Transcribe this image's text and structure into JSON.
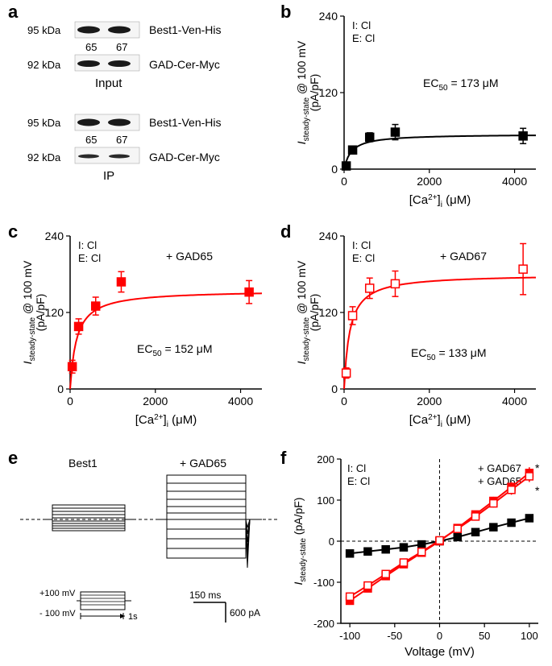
{
  "panel_a": {
    "label": "a",
    "input_label": "Input",
    "ip_label": "IP",
    "kda_95": "95 kDa",
    "kda_92": "92 kDa",
    "lane_65": "65",
    "lane_67": "67",
    "best1_label": "Best1-Ven-His",
    "gad_label": "GAD-Cer-Myc"
  },
  "panel_b": {
    "label": "b",
    "ylabel_top": "I",
    "ylabel_sub": "steady-state",
    "ylabel_mid": " @ 100 mV",
    "ylabel_units": "(pA/pF)",
    "xlabel": "[Ca",
    "xlabel_sup": "2+",
    "xlabel_sub": "i",
    "xlabel_units": " (μM)",
    "ec50_label": "EC",
    "ec50_sub": "50",
    "ec50_val": " = 173 μM",
    "legend_I": "I:  Cl",
    "legend_E": "E: Cl",
    "y_ticks": [
      0,
      120,
      240
    ],
    "x_ticks": [
      0,
      2000,
      4000
    ],
    "x_range": [
      0,
      4500
    ],
    "y_range": [
      0,
      240
    ],
    "color": "#000000",
    "marker_fill": "#000000",
    "data": [
      {
        "x": 50,
        "y": 5,
        "erry": 4
      },
      {
        "x": 200,
        "y": 30,
        "erry": 6
      },
      {
        "x": 600,
        "y": 50,
        "erry": 7
      },
      {
        "x": 1200,
        "y": 58,
        "erry": 12
      },
      {
        "x": 4200,
        "y": 52,
        "erry": 12
      }
    ],
    "plateau": 55
  },
  "panel_c": {
    "label": "c",
    "condition": "+ GAD65",
    "ec50_val": " = 152 μM",
    "color": "#ff0000",
    "marker_fill": "#ff0000",
    "data": [
      {
        "x": 50,
        "y": 35,
        "erry": 10
      },
      {
        "x": 200,
        "y": 98,
        "erry": 12
      },
      {
        "x": 600,
        "y": 130,
        "erry": 14
      },
      {
        "x": 1200,
        "y": 168,
        "erry": 16
      },
      {
        "x": 4200,
        "y": 152,
        "erry": 18
      }
    ],
    "plateau": 155
  },
  "panel_d": {
    "label": "d",
    "condition": "+ GAD67",
    "ec50_val": " = 133 μM",
    "color": "#ff0000",
    "marker_fill": "#ffffff",
    "data": [
      {
        "x": 50,
        "y": 25,
        "erry": 8
      },
      {
        "x": 200,
        "y": 115,
        "erry": 14
      },
      {
        "x": 600,
        "y": 158,
        "erry": 16
      },
      {
        "x": 1200,
        "y": 165,
        "erry": 20
      },
      {
        "x": 4200,
        "y": 188,
        "erry": 40
      }
    ],
    "plateau": 180
  },
  "panel_e": {
    "label": "e",
    "best1_label": "Best1",
    "gad65_label": "+ GAD65",
    "protocol_top": "+100 mV",
    "protocol_bot": "- 100 mV",
    "time_label": "1s",
    "scale_time": "150 ms",
    "scale_curr": "600 pA"
  },
  "panel_f": {
    "label": "f",
    "ylabel_top": "I",
    "ylabel_sub": "steady-state",
    "ylabel_units": " (pA/pF)",
    "xlabel": "Voltage (mV)",
    "legend_I": "I:  Cl",
    "legend_E": "E: Cl",
    "legend_gad67": "+ GAD67",
    "legend_gad65": "+ GAD65",
    "star": "*",
    "y_ticks": [
      -200,
      -100,
      0,
      100,
      200
    ],
    "x_ticks": [
      -100,
      -50,
      0,
      50,
      100
    ],
    "x_range": [
      -110,
      110
    ],
    "y_range": [
      -200,
      200
    ],
    "series": [
      {
        "name": "best1",
        "color": "#000000",
        "fill": "#000000",
        "data": [
          {
            "x": -100,
            "y": -30,
            "erry": 5
          },
          {
            "x": -80,
            "y": -25,
            "erry": 5
          },
          {
            "x": -60,
            "y": -20,
            "erry": 5
          },
          {
            "x": -40,
            "y": -15,
            "erry": 4
          },
          {
            "x": -20,
            "y": -8,
            "erry": 3
          },
          {
            "x": 0,
            "y": 0,
            "erry": 3
          },
          {
            "x": 20,
            "y": 10,
            "erry": 4
          },
          {
            "x": 40,
            "y": 22,
            "erry": 5
          },
          {
            "x": 60,
            "y": 34,
            "erry": 6
          },
          {
            "x": 80,
            "y": 45,
            "erry": 7
          },
          {
            "x": 100,
            "y": 56,
            "erry": 8
          }
        ]
      },
      {
        "name": "gad65",
        "color": "#ff0000",
        "fill": "#ff0000",
        "data": [
          {
            "x": -100,
            "y": -145,
            "erry": 10
          },
          {
            "x": -80,
            "y": -115,
            "erry": 9
          },
          {
            "x": -60,
            "y": -85,
            "erry": 8
          },
          {
            "x": -40,
            "y": -56,
            "erry": 7
          },
          {
            "x": -20,
            "y": -28,
            "erry": 5
          },
          {
            "x": 0,
            "y": 0,
            "erry": 4
          },
          {
            "x": 20,
            "y": 32,
            "erry": 6
          },
          {
            "x": 40,
            "y": 65,
            "erry": 8
          },
          {
            "x": 60,
            "y": 98,
            "erry": 10
          },
          {
            "x": 80,
            "y": 132,
            "erry": 12
          },
          {
            "x": 100,
            "y": 166,
            "erry": 14
          }
        ]
      },
      {
        "name": "gad67",
        "color": "#ff0000",
        "fill": "#ffffff",
        "data": [
          {
            "x": -100,
            "y": -135,
            "erry": 10
          },
          {
            "x": -80,
            "y": -108,
            "erry": 9
          },
          {
            "x": -60,
            "y": -80,
            "erry": 8
          },
          {
            "x": -40,
            "y": -52,
            "erry": 7
          },
          {
            "x": -20,
            "y": -26,
            "erry": 5
          },
          {
            "x": 0,
            "y": 2,
            "erry": 4
          },
          {
            "x": 20,
            "y": 30,
            "erry": 6
          },
          {
            "x": 40,
            "y": 60,
            "erry": 8
          },
          {
            "x": 60,
            "y": 92,
            "erry": 10
          },
          {
            "x": 80,
            "y": 125,
            "erry": 12
          },
          {
            "x": 100,
            "y": 158,
            "erry": 14
          }
        ]
      }
    ]
  }
}
